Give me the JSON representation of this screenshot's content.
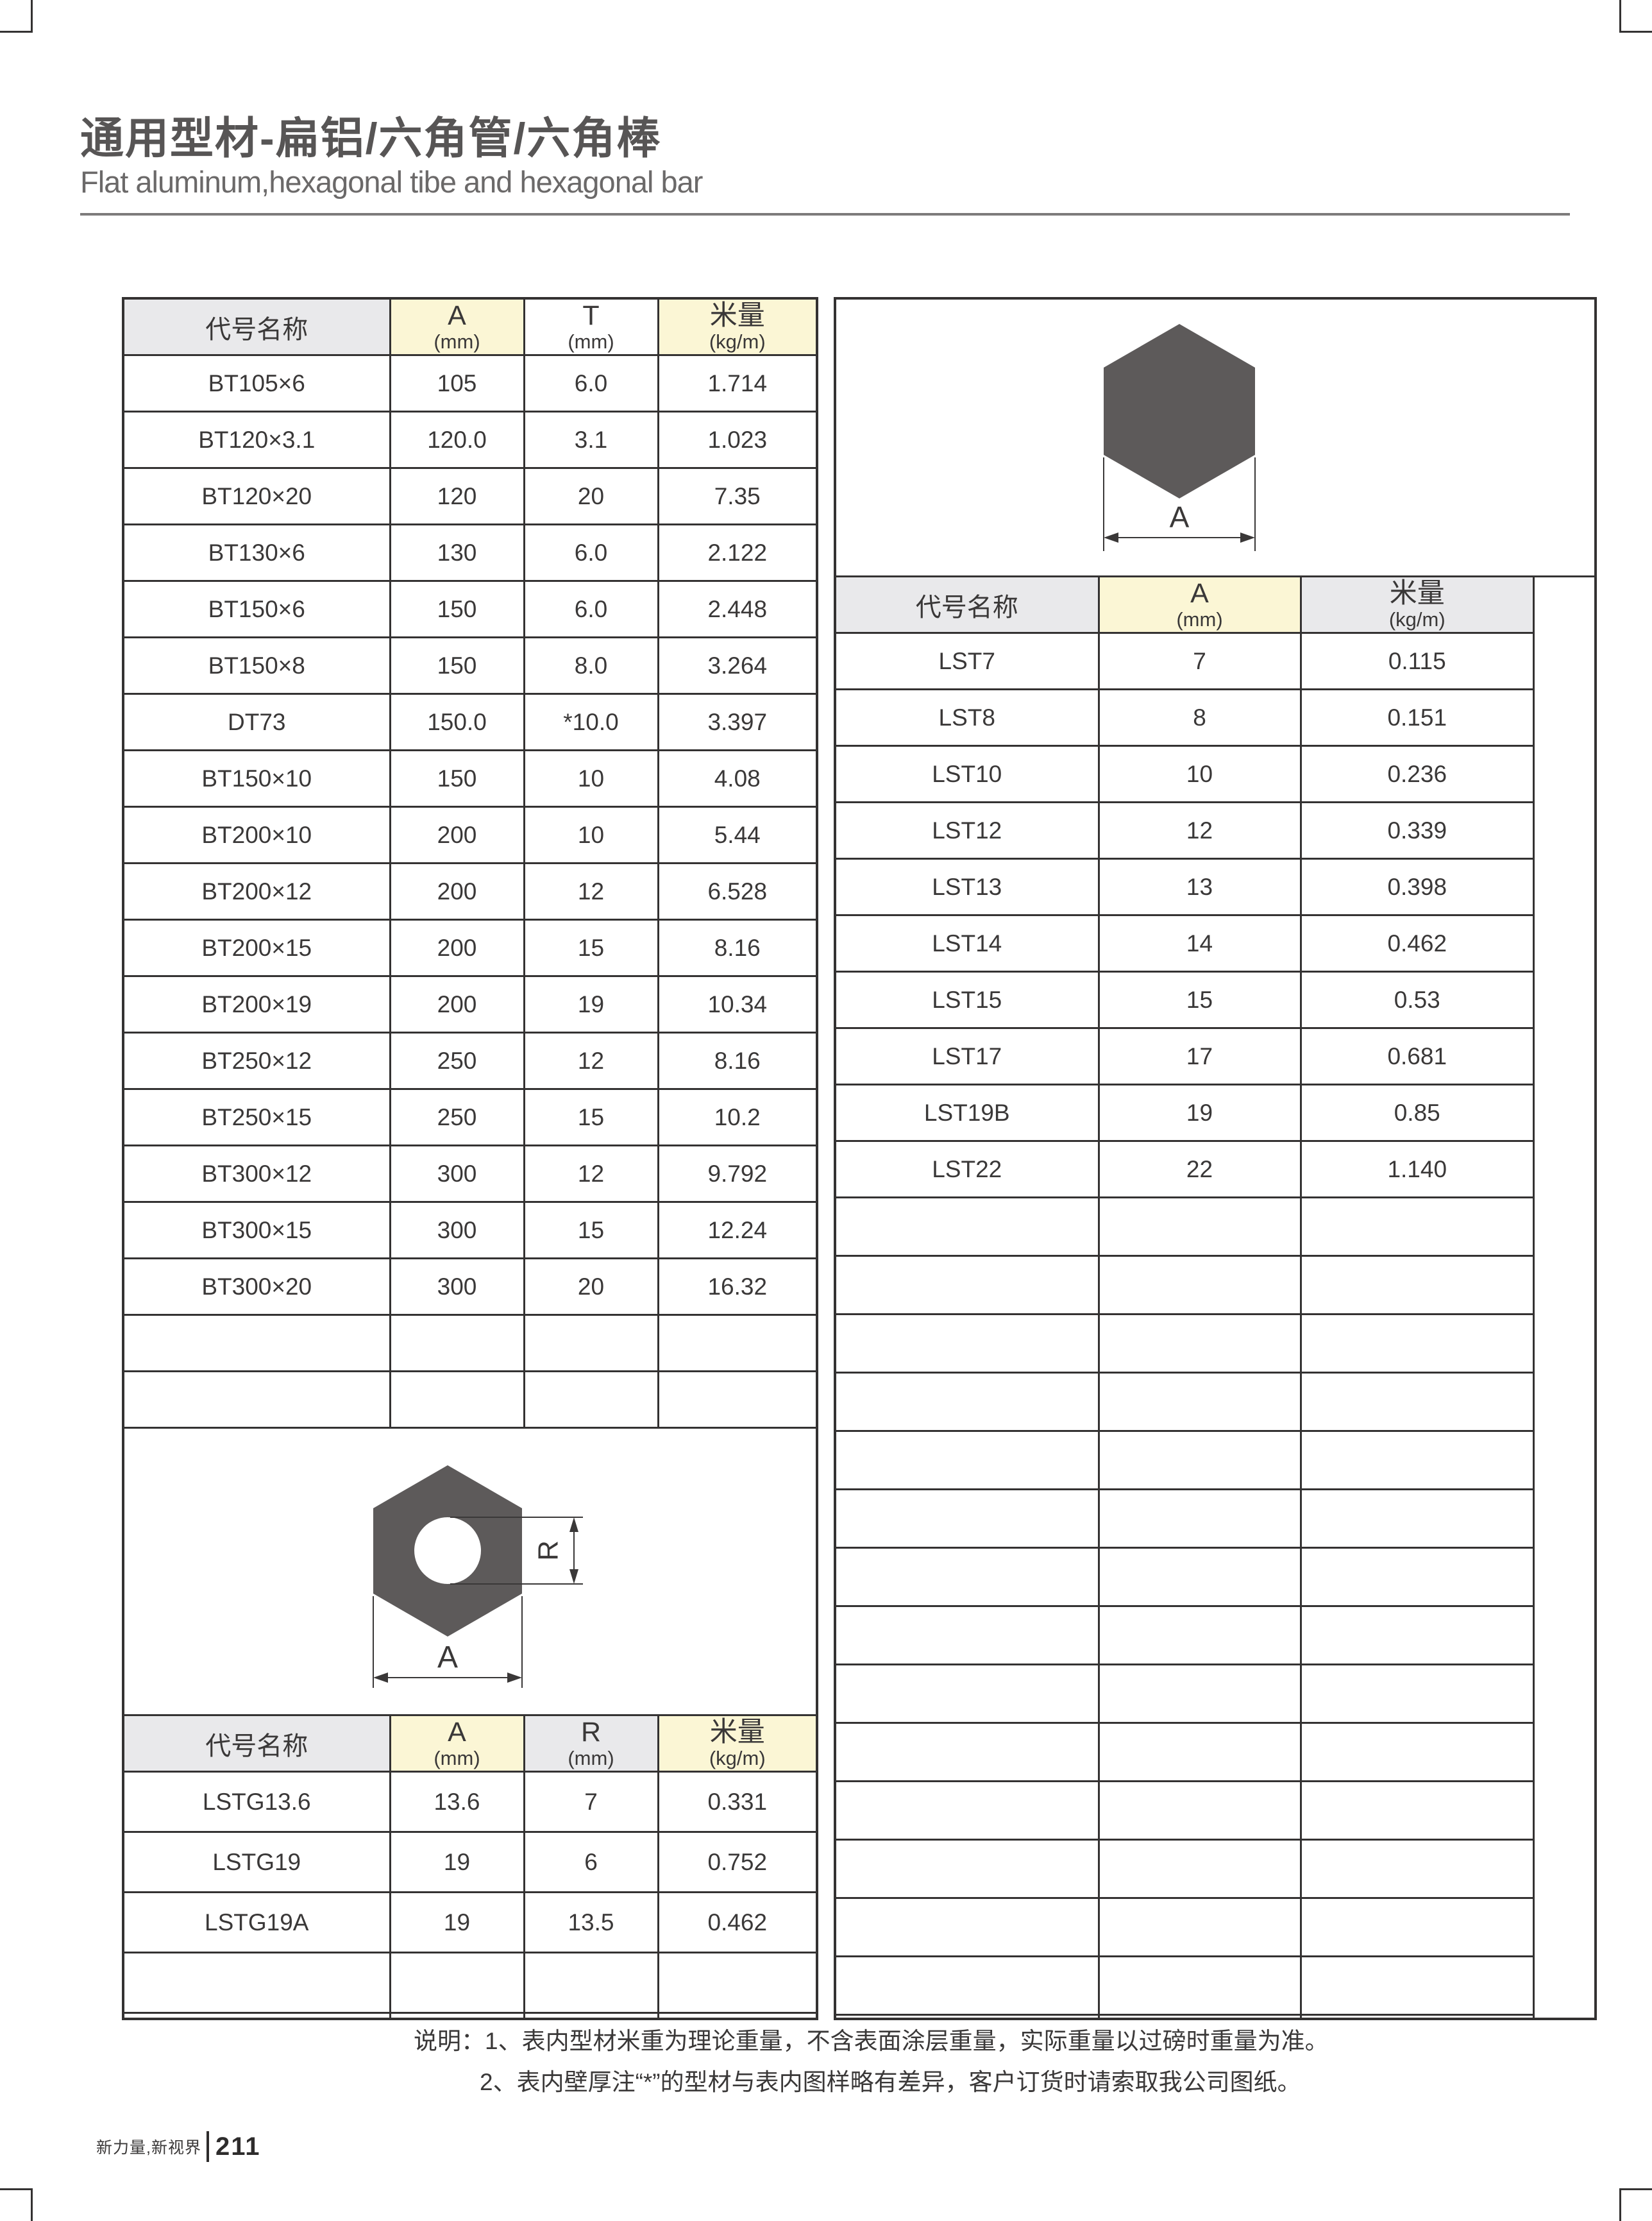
{
  "header": {
    "title": "通用型材-扁铝/六角管/六角棒",
    "subtitle": "Flat aluminum,hexagonal tibe and hexagonal bar"
  },
  "colors": {
    "row_cream": "#fbf6d5",
    "row_gray": "#e9e9eb",
    "grid_line": "#343232",
    "shape_fill": "#5d5a5a",
    "text": "#3a3838"
  },
  "tables": {
    "flat": {
      "headers": [
        "代号名称",
        "A",
        "T",
        "米量"
      ],
      "units": [
        "",
        "(mm)",
        "(mm)",
        "(kg/m)"
      ],
      "rows": [
        [
          "BT105×6",
          "105",
          "6.0",
          "1.714"
        ],
        [
          "BT120×3.1",
          "120.0",
          "3.1",
          "1.023"
        ],
        [
          "BT120×20",
          "120",
          "20",
          "7.35"
        ],
        [
          "BT130×6",
          "130",
          "6.0",
          "2.122"
        ],
        [
          "BT150×6",
          "150",
          "6.0",
          "2.448"
        ],
        [
          "BT150×8",
          "150",
          "8.0",
          "3.264"
        ],
        [
          "DT73",
          "150.0",
          "*10.0",
          "3.397"
        ],
        [
          "BT150×10",
          "150",
          "10",
          "4.08"
        ],
        [
          "BT200×10",
          "200",
          "10",
          "5.44"
        ],
        [
          "BT200×12",
          "200",
          "12",
          "6.528"
        ],
        [
          "BT200×15",
          "200",
          "15",
          "8.16"
        ],
        [
          "BT200×19",
          "200",
          "19",
          "10.34"
        ],
        [
          "BT250×12",
          "250",
          "12",
          "8.16"
        ],
        [
          "BT250×15",
          "250",
          "15",
          "10.2"
        ],
        [
          "BT300×12",
          "300",
          "12",
          "9.792"
        ],
        [
          "BT300×15",
          "300",
          "15",
          "12.24"
        ],
        [
          "BT300×20",
          "300",
          "20",
          "16.32"
        ]
      ],
      "empty_rows": 2
    },
    "hex_bar": {
      "headers": [
        "代号名称",
        "A",
        "米量"
      ],
      "units": [
        "",
        "(mm)",
        "(kg/m)"
      ],
      "rows": [
        [
          "LST7",
          "7",
          "0.115"
        ],
        [
          "LST8",
          "8",
          "0.151"
        ],
        [
          "LST10",
          "10",
          "0.236"
        ],
        [
          "LST12",
          "12",
          "0.339"
        ],
        [
          "LST13",
          "13",
          "0.398"
        ],
        [
          "LST14",
          "14",
          "0.462"
        ],
        [
          "LST15",
          "15",
          "0.53"
        ],
        [
          "LST17",
          "17",
          "0.681"
        ],
        [
          "LST19B",
          "19",
          "0.85"
        ],
        [
          "LST22",
          "22",
          "1.140"
        ]
      ],
      "empty_rows": 15
    },
    "hex_tube": {
      "headers": [
        "代号名称",
        "A",
        "R",
        "米量"
      ],
      "units": [
        "",
        "(mm)",
        "(mm)",
        "(kg/m)"
      ],
      "rows": [
        [
          "LSTG13.6",
          "13.6",
          "7",
          "0.331"
        ],
        [
          "LSTG19",
          "19",
          "6",
          "0.752"
        ],
        [
          "LSTG19A",
          "19",
          "13.5",
          "0.462"
        ]
      ],
      "empty_rows": 2
    }
  },
  "diagrams": {
    "hex_bar": {
      "width_label": "A"
    },
    "hex_tube": {
      "width_label": "A",
      "bore_label": "R"
    }
  },
  "footer": {
    "notes": [
      "说明：1、表内型材米重为理论重量，不含表面涂层重量，实际重量以过磅时重量为准。",
      "2、表内壁厚注“*”的型材与表内图样略有差异，客户订货时请索取我公司图纸。"
    ],
    "brand": "新力量,新视界",
    "page": "211"
  }
}
